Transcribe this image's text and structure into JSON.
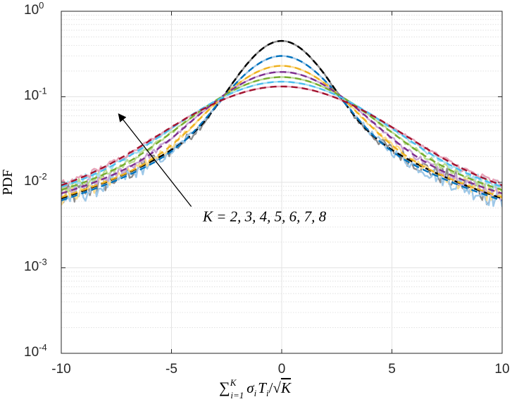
{
  "chart_data": {
    "type": "line",
    "title": "",
    "xlabel": "∑_{i=1}^{K} σ_i T_i / √K",
    "xlabel_parts": {
      "sum": "∑",
      "upper": "K",
      "lower": "i=1",
      "body": "σ",
      "body_sub": "i",
      "body2": "T",
      "body2_sub": "i",
      "slash": "/",
      "root": "√",
      "root_arg": "K"
    },
    "ylabel": "PDF",
    "xlim": [
      -10,
      10
    ],
    "ylim": [
      0.0001,
      1
    ],
    "yscale": "log",
    "grid": true,
    "minor_grid": true,
    "x_ticks": [
      -10,
      -5,
      0,
      5,
      10
    ],
    "x_tick_labels": [
      "-10",
      "-5",
      "0",
      "5",
      "10"
    ],
    "y_ticks": [
      0.0001,
      0.001,
      0.01,
      0.1,
      1
    ],
    "y_tick_labels": [
      {
        "base": "10",
        "exp": "-4"
      },
      {
        "base": "10",
        "exp": "-3"
      },
      {
        "base": "10",
        "exp": "-2"
      },
      {
        "base": "10",
        "exp": "-1"
      },
      {
        "base": "10",
        "exp": "0"
      }
    ],
    "annotation": {
      "text": "K = 2, 3, 4, 5, 6, 7, 8",
      "arrow_from": [
        -4.1,
        0.0052
      ],
      "arrow_to": [
        -7.4,
        0.063
      ]
    },
    "series": [
      {
        "name": "K=2",
        "peak": 0.45,
        "scale": 1.35,
        "tail_slope": 0.73,
        "empirical_color": "#8c8c8c",
        "fit_color": "#000000"
      },
      {
        "name": "K=3",
        "peak": 0.3,
        "scale": 1.62,
        "tail_slope": 0.63,
        "empirical_color": "#9ec8e8",
        "fit_color": "#0072bd"
      },
      {
        "name": "K=4",
        "peak": 0.23,
        "scale": 1.95,
        "tail_slope": 0.56,
        "empirical_color": "#fddc8e",
        "fit_color": "#edb120"
      },
      {
        "name": "K=5",
        "peak": 0.195,
        "scale": 2.25,
        "tail_slope": 0.51,
        "empirical_color": "#c9a6d6",
        "fit_color": "#7e2f8e"
      },
      {
        "name": "K=6",
        "peak": 0.17,
        "scale": 2.55,
        "tail_slope": 0.47,
        "empirical_color": "#bcdc96",
        "fit_color": "#77ac30"
      },
      {
        "name": "K=7",
        "peak": 0.15,
        "scale": 2.85,
        "tail_slope": 0.44,
        "empirical_color": "#a9dff2",
        "fit_color": "#4dbeee"
      },
      {
        "name": "K=8",
        "peak": 0.132,
        "scale": 3.1,
        "tail_slope": 0.42,
        "empirical_color": "#e8a2b7",
        "fit_color": "#a2142f"
      }
    ],
    "x_samples": {
      "start": -10,
      "end": 10,
      "step": 0.1
    }
  }
}
